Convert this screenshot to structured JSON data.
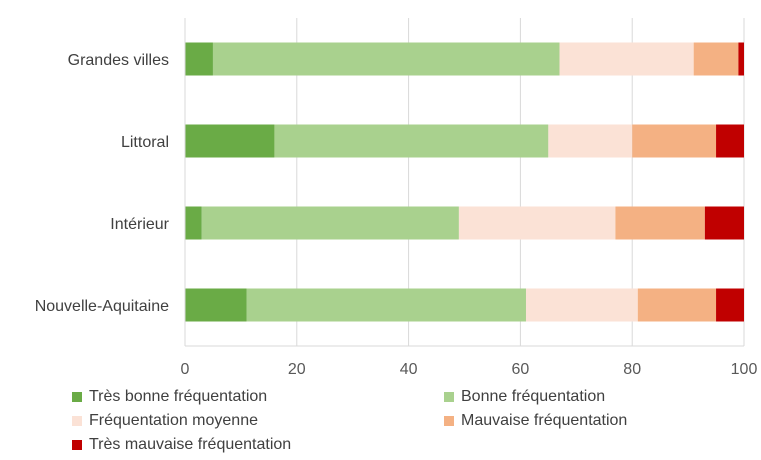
{
  "chart_data": {
    "type": "bar",
    "orientation": "horizontal",
    "stacked": true,
    "title": "",
    "xlabel": "",
    "ylabel": "",
    "xlim": [
      0,
      100
    ],
    "x_ticks": [
      0,
      20,
      40,
      60,
      80,
      100
    ],
    "grid": true,
    "legend_position": "bottom",
    "categories": [
      "Grandes villes",
      "Littoral",
      "Intérieur",
      "Nouvelle-Aquitaine"
    ],
    "series": [
      {
        "name": "Très bonne fréquentation",
        "color": "#6aab46",
        "values": [
          5,
          16,
          3,
          11
        ]
      },
      {
        "name": "Bonne fréquentation",
        "color": "#a9d18e",
        "values": [
          62,
          49,
          46,
          50
        ]
      },
      {
        "name": "Fréquentation moyenne",
        "color": "#fbe2d6",
        "values": [
          24,
          15,
          28,
          20
        ]
      },
      {
        "name": "Mauvaise fréquentation",
        "color": "#f4b183",
        "values": [
          8,
          15,
          16,
          14
        ]
      },
      {
        "name": "Très mauvaise fréquentation",
        "color": "#c00000",
        "values": [
          1,
          5,
          7,
          5
        ]
      }
    ]
  }
}
